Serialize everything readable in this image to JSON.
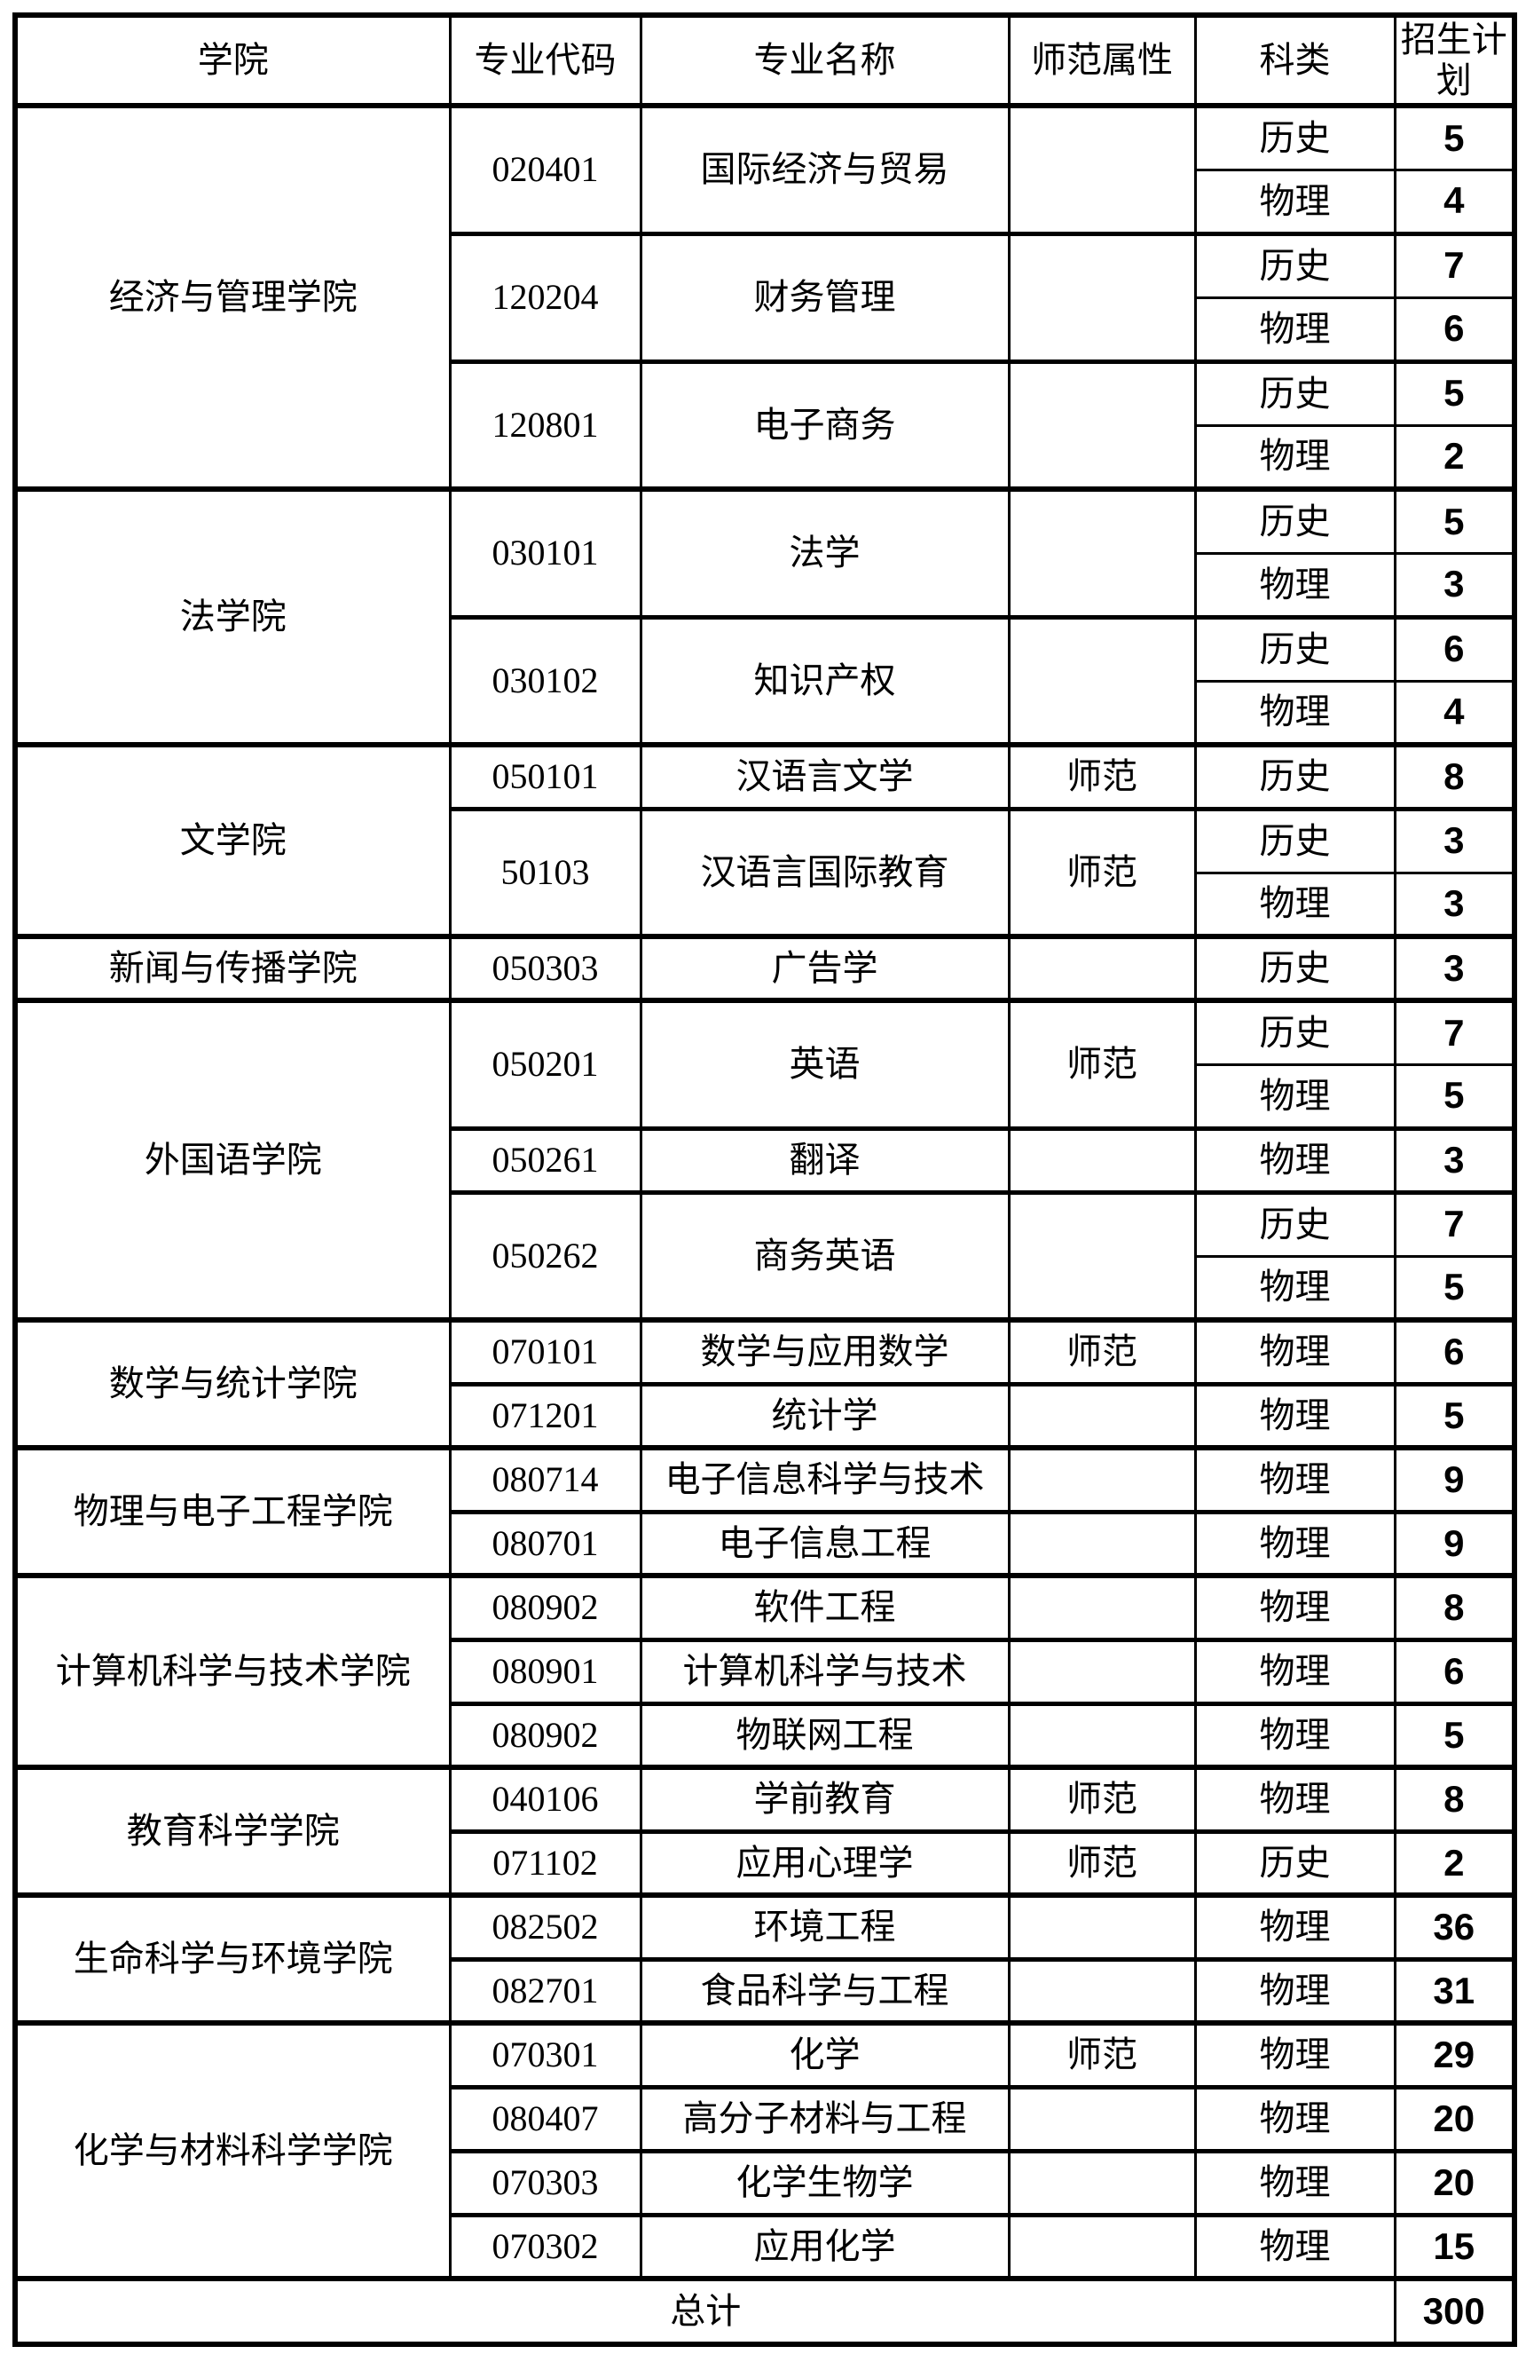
{
  "header": {
    "columns": [
      "学院",
      "专业代码",
      "专业名称",
      "师范属性",
      "科类",
      "招生计划"
    ]
  },
  "colleges": [
    {
      "name": "经济与管理学院",
      "majors": [
        {
          "code": "020401",
          "name": "国际经济与贸易",
          "normal": "",
          "plans": [
            {
              "subject": "历史",
              "count": "5"
            },
            {
              "subject": "物理",
              "count": "4"
            }
          ]
        },
        {
          "code": "120204",
          "name": "财务管理",
          "normal": "",
          "plans": [
            {
              "subject": "历史",
              "count": "7"
            },
            {
              "subject": "物理",
              "count": "6"
            }
          ]
        },
        {
          "code": "120801",
          "name": "电子商务",
          "normal": "",
          "plans": [
            {
              "subject": "历史",
              "count": "5"
            },
            {
              "subject": "物理",
              "count": "2"
            }
          ]
        }
      ]
    },
    {
      "name": "法学院",
      "majors": [
        {
          "code": "030101",
          "name": "法学",
          "normal": "",
          "plans": [
            {
              "subject": "历史",
              "count": "5"
            },
            {
              "subject": "物理",
              "count": "3"
            }
          ]
        },
        {
          "code": "030102",
          "name": "知识产权",
          "normal": "",
          "plans": [
            {
              "subject": "历史",
              "count": "6"
            },
            {
              "subject": "物理",
              "count": "4"
            }
          ]
        }
      ]
    },
    {
      "name": "文学院",
      "majors": [
        {
          "code": "050101",
          "name": "汉语言文学",
          "normal": "师范",
          "plans": [
            {
              "subject": "历史",
              "count": "8"
            }
          ]
        },
        {
          "code": "50103",
          "name": "汉语言国际教育",
          "normal": "师范",
          "plans": [
            {
              "subject": "历史",
              "count": "3"
            },
            {
              "subject": "物理",
              "count": "3"
            }
          ]
        }
      ]
    },
    {
      "name": "新闻与传播学院",
      "majors": [
        {
          "code": "050303",
          "name": "广告学",
          "normal": "",
          "plans": [
            {
              "subject": "历史",
              "count": "3"
            }
          ]
        }
      ]
    },
    {
      "name": "外国语学院",
      "majors": [
        {
          "code": "050201",
          "name": "英语",
          "normal": "师范",
          "plans": [
            {
              "subject": "历史",
              "count": "7"
            },
            {
              "subject": "物理",
              "count": "5"
            }
          ]
        },
        {
          "code": "050261",
          "name": "翻译",
          "normal": "",
          "plans": [
            {
              "subject": "物理",
              "count": "3"
            }
          ]
        },
        {
          "code": "050262",
          "name": "商务英语",
          "normal": "",
          "plans": [
            {
              "subject": "历史",
              "count": "7"
            },
            {
              "subject": "物理",
              "count": "5"
            }
          ]
        }
      ]
    },
    {
      "name": "数学与统计学院",
      "majors": [
        {
          "code": "070101",
          "name": "数学与应用数学",
          "normal": "师范",
          "plans": [
            {
              "subject": "物理",
              "count": "6"
            }
          ]
        },
        {
          "code": "071201",
          "name": "统计学",
          "normal": "",
          "plans": [
            {
              "subject": "物理",
              "count": "5"
            }
          ]
        }
      ]
    },
    {
      "name": "物理与电子工程学院",
      "majors": [
        {
          "code": "080714",
          "name": "电子信息科学与技术",
          "normal": "",
          "plans": [
            {
              "subject": "物理",
              "count": "9"
            }
          ]
        },
        {
          "code": "080701",
          "name": "电子信息工程",
          "normal": "",
          "plans": [
            {
              "subject": "物理",
              "count": "9"
            }
          ]
        }
      ]
    },
    {
      "name": "计算机科学与技术学院",
      "majors": [
        {
          "code": "080902",
          "name": "软件工程",
          "normal": "",
          "plans": [
            {
              "subject": "物理",
              "count": "8"
            }
          ]
        },
        {
          "code": "080901",
          "name": "计算机科学与技术",
          "normal": "",
          "plans": [
            {
              "subject": "物理",
              "count": "6"
            }
          ]
        },
        {
          "code": "080902",
          "name": "物联网工程",
          "normal": "",
          "plans": [
            {
              "subject": "物理",
              "count": "5"
            }
          ]
        }
      ]
    },
    {
      "name": "教育科学学院",
      "majors": [
        {
          "code": "040106",
          "name": "学前教育",
          "normal": "师范",
          "plans": [
            {
              "subject": "物理",
              "count": "8"
            }
          ]
        },
        {
          "code": "071102",
          "name": "应用心理学",
          "normal": "师范",
          "plans": [
            {
              "subject": "历史",
              "count": "2"
            }
          ]
        }
      ]
    },
    {
      "name": "生命科学与环境学院",
      "majors": [
        {
          "code": "082502",
          "name": "环境工程",
          "normal": "",
          "plans": [
            {
              "subject": "物理",
              "count": "36"
            }
          ]
        },
        {
          "code": "082701",
          "name": "食品科学与工程",
          "normal": "",
          "plans": [
            {
              "subject": "物理",
              "count": "31"
            }
          ]
        }
      ]
    },
    {
      "name": "化学与材料科学学院",
      "majors": [
        {
          "code": "070301",
          "name": "化学",
          "normal": "师范",
          "plans": [
            {
              "subject": "物理",
              "count": "29"
            }
          ]
        },
        {
          "code": "080407",
          "name": "高分子材料与工程",
          "normal": "",
          "plans": [
            {
              "subject": "物理",
              "count": "20"
            }
          ]
        },
        {
          "code": "070303",
          "name": "化学生物学",
          "normal": "",
          "plans": [
            {
              "subject": "物理",
              "count": "20"
            }
          ]
        },
        {
          "code": "070302",
          "name": "应用化学",
          "normal": "",
          "plans": [
            {
              "subject": "物理",
              "count": "15"
            }
          ]
        }
      ]
    }
  ],
  "footer": {
    "label": "总计",
    "total": "300"
  }
}
